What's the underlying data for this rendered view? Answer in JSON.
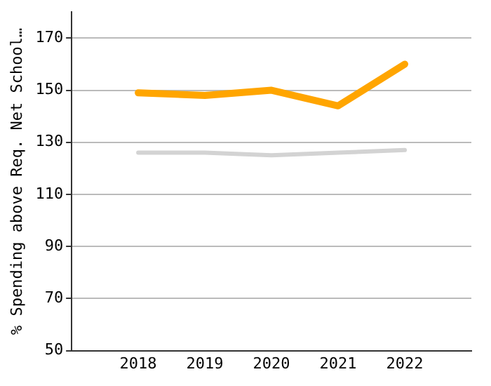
{
  "chart_data": {
    "type": "line",
    "ylabel": "% Spending above Req. Net School…",
    "categories": [
      "2018",
      "2019",
      "2020",
      "2021",
      "2022"
    ],
    "series": [
      {
        "color": "#ffa500",
        "values": [
          149,
          148,
          150,
          144,
          160
        ]
      },
      {
        "color": "#d3d3d3",
        "values": [
          126,
          126,
          125,
          126,
          127
        ]
      }
    ],
    "ylim": [
      50,
      180
    ],
    "yticks": [
      50,
      70,
      90,
      110,
      130,
      150,
      170
    ],
    "grid": "y",
    "legend": false,
    "marker": "none",
    "line_style": "solid"
  }
}
